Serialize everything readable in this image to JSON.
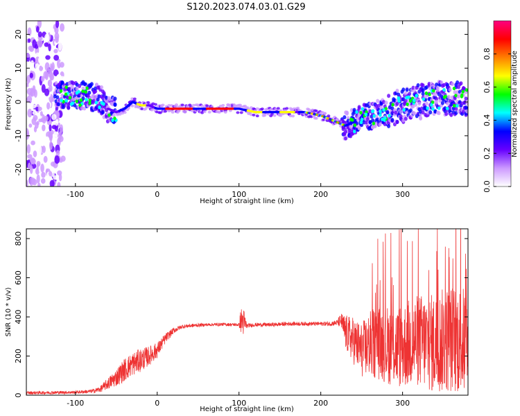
{
  "title": "S120.2023.074.03.01.G29",
  "chart_data": [
    {
      "type": "heatmap",
      "xlabel": "Height of straight line (km)",
      "ylabel": "Frequency (Hz)",
      "xlim": [
        -160,
        380
      ],
      "ylim": [
        -25,
        24
      ],
      "xticks": [
        -100,
        0,
        100,
        200,
        300
      ],
      "yticks": [
        -20,
        -10,
        0,
        10,
        20
      ],
      "colorbar": {
        "label": "Normalized spectral amplitude",
        "range": [
          0.0,
          1.0
        ],
        "ticks": [
          0.0,
          0.2,
          0.4,
          0.6,
          0.8
        ],
        "tick_labels": [
          "0.0",
          "0.2",
          "0.4",
          "0.6",
          "0.8"
        ],
        "colors": [
          "#ffffff",
          "#cc99ff",
          "#6600ff",
          "#0000ff",
          "#00ffff",
          "#00ff00",
          "#ffff00",
          "#ff8000",
          "#ff0000",
          "#ff0080"
        ]
      },
      "ridge": {
        "x": [
          -120,
          -90,
          -70,
          -60,
          -50,
          -40,
          -30,
          -20,
          -10,
          0,
          20,
          40,
          60,
          80,
          100,
          120,
          140,
          160,
          180,
          200,
          210,
          220,
          230,
          240,
          260,
          280,
          300,
          320,
          340,
          360,
          380
        ],
        "y": [
          2,
          2,
          1,
          -2,
          -3,
          -2,
          0,
          -1,
          -1,
          -2,
          -2,
          -2,
          -2,
          -2,
          -2,
          -3,
          -3,
          -3,
          -3,
          -4,
          -5,
          -6,
          -7,
          -6,
          -4,
          -3,
          -1,
          0,
          1,
          1,
          1
        ]
      }
    },
    {
      "type": "line",
      "xlabel": "Height of straight line (km)",
      "ylabel": "SNR (10 * v/v)",
      "xlim": [
        -160,
        380
      ],
      "ylim": [
        0,
        850
      ],
      "xticks": [
        -100,
        0,
        100,
        200,
        300
      ],
      "yticks": [
        0,
        200,
        400,
        600,
        800
      ],
      "color": "#ee3333",
      "envelope": {
        "x": [
          -160,
          -100,
          -80,
          -70,
          -60,
          -50,
          -40,
          -30,
          -20,
          -10,
          0,
          10,
          20,
          30,
          40,
          60,
          80,
          100,
          102,
          105,
          108,
          110,
          120,
          140,
          160,
          180,
          200,
          210,
          220,
          225,
          230,
          240,
          250,
          260,
          270,
          280,
          290,
          300,
          310,
          320,
          330,
          340,
          350,
          360,
          370,
          380
        ],
        "mean": [
          12,
          15,
          20,
          30,
          60,
          90,
          130,
          160,
          180,
          200,
          230,
          290,
          330,
          350,
          355,
          360,
          362,
          360,
          380,
          380,
          360,
          355,
          360,
          360,
          365,
          365,
          365,
          365,
          370,
          380,
          320,
          280,
          230,
          260,
          270,
          260,
          250,
          250,
          270,
          280,
          270,
          260,
          280,
          290,
          280,
          270
        ],
        "spread": [
          8,
          8,
          10,
          15,
          30,
          45,
          60,
          60,
          60,
          50,
          40,
          25,
          15,
          10,
          10,
          8,
          8,
          8,
          60,
          80,
          40,
          10,
          10,
          10,
          10,
          10,
          10,
          12,
          15,
          40,
          90,
          120,
          140,
          170,
          190,
          200,
          210,
          220,
          230,
          240,
          250,
          260,
          270,
          280,
          280,
          280
        ]
      }
    }
  ]
}
